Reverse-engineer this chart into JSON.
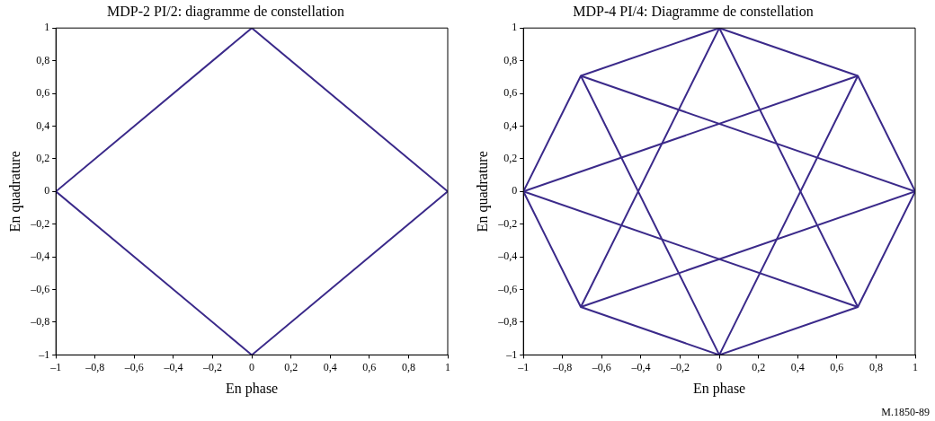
{
  "chart_data": [
    {
      "type": "line",
      "title": "MDP-2 PI/2: diagramme de constellation",
      "xlabel": "En phase",
      "ylabel": "En quadrature",
      "marker": "none",
      "legend": false,
      "series": [
        {
          "color": "#3b2a8a",
          "x": [
            -1,
            0,
            1
          ],
          "values": [
            0,
            1,
            0
          ]
        },
        {
          "color": "#3b2a8a",
          "x": [
            -1,
            0,
            1
          ],
          "values": [
            0,
            -1,
            0
          ]
        }
      ],
      "xlim": [
        -1,
        1
      ],
      "ylim": [
        -1,
        1
      ],
      "xticks": [
        {
          "value": -1,
          "label": "–1"
        },
        {
          "value": -0.8,
          "label": "–0,8"
        },
        {
          "value": -0.6,
          "label": "–0,6"
        },
        {
          "value": -0.4,
          "label": "–0,4"
        },
        {
          "value": -0.2,
          "label": "–0,2"
        },
        {
          "value": 0,
          "label": "0"
        },
        {
          "value": 0.2,
          "label": "0,2"
        },
        {
          "value": 0.4,
          "label": "0,4"
        },
        {
          "value": 0.6,
          "label": "0,6"
        },
        {
          "value": 0.8,
          "label": "0,8"
        },
        {
          "value": 1,
          "label": "1"
        }
      ],
      "yticks": [
        {
          "value": -1,
          "label": "–1"
        },
        {
          "value": -0.8,
          "label": "–0,8"
        },
        {
          "value": -0.6,
          "label": "–0,6"
        },
        {
          "value": -0.4,
          "label": "–0,4"
        },
        {
          "value": -0.2,
          "label": "–0,2"
        },
        {
          "value": 0,
          "label": "0"
        },
        {
          "value": 0.2,
          "label": "0,2"
        },
        {
          "value": 0.4,
          "label": "0,4"
        },
        {
          "value": 0.6,
          "label": "0,6"
        },
        {
          "value": 0.8,
          "label": "0,8"
        },
        {
          "value": 1,
          "label": "1"
        }
      ]
    },
    {
      "type": "line",
      "title": "MDP-4 PI/4: Diagramme de constellation",
      "xlabel": "En phase",
      "ylabel": "En quadrature",
      "marker": "none",
      "legend": false,
      "series": [
        {
          "color": "#3b2a8a",
          "x": [
            -1,
            -0.707,
            0,
            0.707,
            1
          ],
          "values": [
            0,
            0.707,
            1,
            0.707,
            0
          ]
        },
        {
          "color": "#3b2a8a",
          "x": [
            -1,
            -0.707,
            0,
            0.707,
            1
          ],
          "values": [
            0,
            -0.707,
            -1,
            -0.707,
            0
          ]
        },
        {
          "color": "#3b2a8a",
          "x": [
            -0.707,
            0,
            0.707
          ],
          "values": [
            0.707,
            -1,
            0.707
          ]
        },
        {
          "color": "#3b2a8a",
          "x": [
            -0.707,
            0,
            0.707
          ],
          "values": [
            -0.707,
            1,
            -0.707
          ]
        },
        {
          "color": "#3b2a8a",
          "x": [
            -1,
            0.707
          ],
          "values": [
            0,
            0.707
          ]
        },
        {
          "color": "#3b2a8a",
          "x": [
            -1,
            0.707
          ],
          "values": [
            0,
            -0.707
          ]
        },
        {
          "color": "#3b2a8a",
          "x": [
            -0.707,
            1
          ],
          "values": [
            0.707,
            0
          ]
        },
        {
          "color": "#3b2a8a",
          "x": [
            -0.707,
            1
          ],
          "values": [
            -0.707,
            0
          ]
        }
      ],
      "xlim": [
        -1,
        1
      ],
      "ylim": [
        -1,
        1
      ],
      "xticks": [
        {
          "value": -1,
          "label": "–1"
        },
        {
          "value": -0.8,
          "label": "–0,8"
        },
        {
          "value": -0.6,
          "label": "–0,6"
        },
        {
          "value": -0.4,
          "label": "–0,4"
        },
        {
          "value": -0.2,
          "label": "–0,2"
        },
        {
          "value": 0,
          "label": "0"
        },
        {
          "value": 0.2,
          "label": "0,2"
        },
        {
          "value": 0.4,
          "label": "0,4"
        },
        {
          "value": 0.6,
          "label": "0,6"
        },
        {
          "value": 0.8,
          "label": "0,8"
        },
        {
          "value": 1,
          "label": "1"
        }
      ],
      "yticks": [
        {
          "value": -1,
          "label": "–1"
        },
        {
          "value": -0.8,
          "label": "–0,8"
        },
        {
          "value": -0.6,
          "label": "–0,6"
        },
        {
          "value": -0.4,
          "label": "–0,4"
        },
        {
          "value": -0.2,
          "label": "–0,2"
        },
        {
          "value": 0,
          "label": "0"
        },
        {
          "value": 0.2,
          "label": "0,2"
        },
        {
          "value": 0.4,
          "label": "0,4"
        },
        {
          "value": 0.6,
          "label": "0,6"
        },
        {
          "value": 0.8,
          "label": "0,8"
        },
        {
          "value": 1,
          "label": "1"
        }
      ],
      "annotations": [
        "M.1850-89"
      ]
    }
  ]
}
